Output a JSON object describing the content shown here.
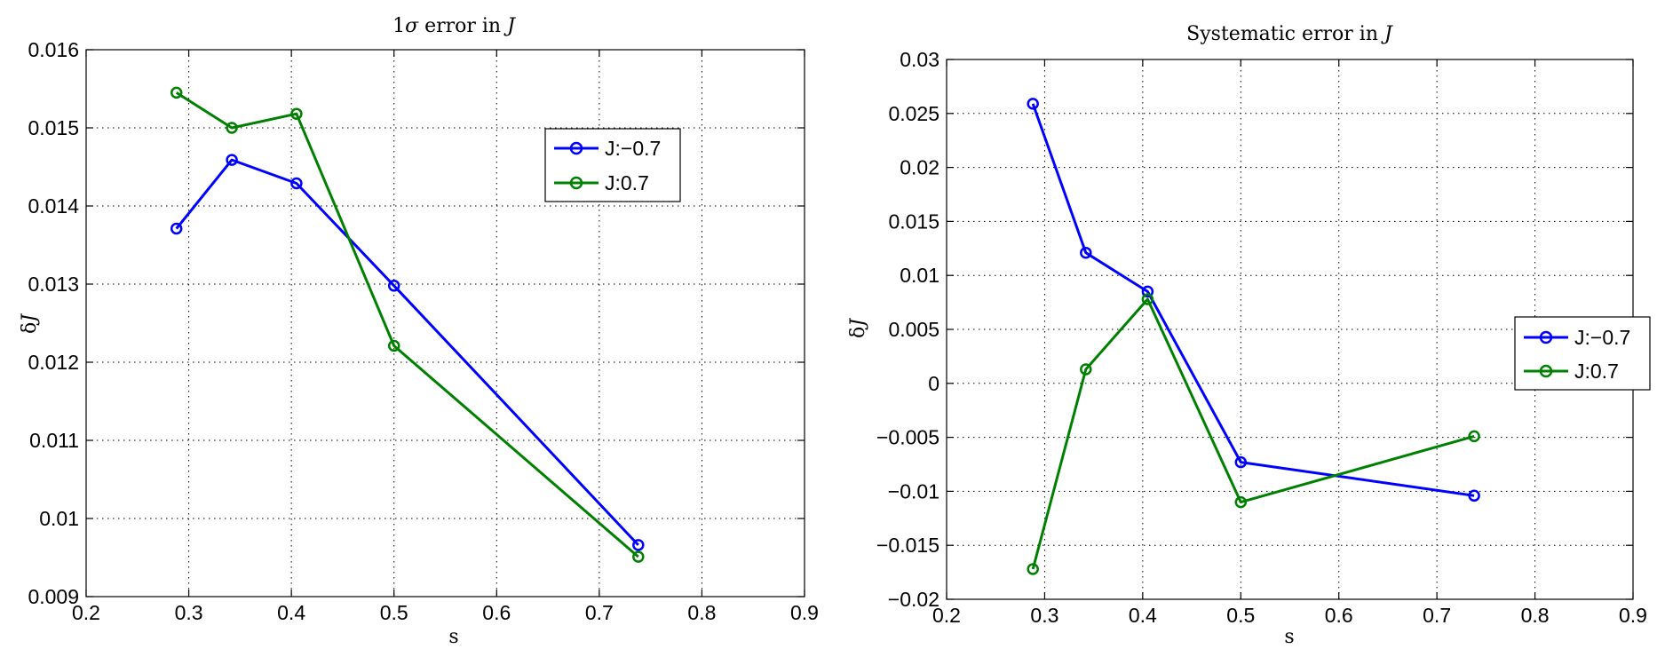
{
  "chart_data": [
    {
      "type": "line",
      "title": "1σ error in J",
      "xlabel": "s",
      "ylabel": "δJ",
      "xlim": [
        0.2,
        0.9
      ],
      "ylim": [
        0.009,
        0.016
      ],
      "xticks": [
        "0.2",
        "0.3",
        "0.4",
        "0.5",
        "0.6",
        "0.7",
        "0.8",
        "0.9"
      ],
      "yticks": [
        "0.009",
        "0.01",
        "0.011",
        "0.012",
        "0.013",
        "0.014",
        "0.015",
        "0.016"
      ],
      "grid": true,
      "legend_position": "upper-right",
      "x": [
        0.288,
        0.342,
        0.405,
        0.5,
        0.738
      ],
      "series": [
        {
          "name": "J:−0.7",
          "color": "#0000ff",
          "values": [
            0.01371,
            0.01459,
            0.01429,
            0.01298,
            0.00966
          ]
        },
        {
          "name": "J:0.7",
          "color": "#008000",
          "values": [
            0.01545,
            0.015,
            0.01518,
            0.01221,
            0.00951
          ]
        }
      ]
    },
    {
      "type": "line",
      "title": "Systematic error in J",
      "xlabel": "s",
      "ylabel": "δJ",
      "xlim": [
        0.2,
        0.9
      ],
      "ylim": [
        -0.02,
        0.03
      ],
      "xticks": [
        "0.2",
        "0.3",
        "0.4",
        "0.5",
        "0.6",
        "0.7",
        "0.8",
        "0.9"
      ],
      "yticks": [
        "−0.02",
        "−0.015",
        "−0.01",
        "−0.005",
        "0",
        "0.005",
        "0.01",
        "0.015",
        "0.02",
        "0.025",
        "0.03"
      ],
      "grid": true,
      "legend_position": "right",
      "x": [
        0.288,
        0.342,
        0.405,
        0.5,
        0.738
      ],
      "series": [
        {
          "name": "J:−0.7",
          "color": "#0000ff",
          "values": [
            0.0259,
            0.0121,
            0.0085,
            -0.0073,
            -0.0104
          ]
        },
        {
          "name": "J:0.7",
          "color": "#008000",
          "values": [
            -0.0172,
            0.0013,
            0.0078,
            -0.011,
            -0.0049
          ]
        }
      ]
    }
  ]
}
